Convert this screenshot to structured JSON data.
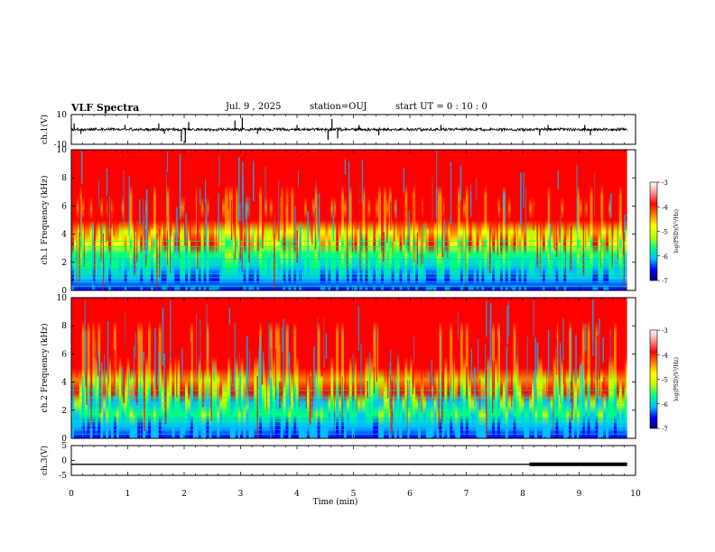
{
  "header": {
    "title": "VLF Spectra",
    "date": "Jul. 9 , 2025",
    "station": "station=OUJ",
    "start": "start UT = 0 : 10 : 0"
  },
  "chart_data": [
    {
      "type": "line",
      "name": "ch1-waveform",
      "ylabel": "ch.1(V)",
      "ylim": [
        -10,
        10
      ],
      "yticks": [
        "10",
        "-10"
      ],
      "xlim": [
        0,
        10
      ],
      "baseline": 0,
      "noise_amplitude": 1.2,
      "spikes": [
        {
          "t": 0.05,
          "v": 4
        },
        {
          "t": 0.17,
          "v": -3
        },
        {
          "t": 0.95,
          "v": 3
        },
        {
          "t": 1.55,
          "v": 4
        },
        {
          "t": 1.65,
          "v": -3
        },
        {
          "t": 1.95,
          "v": -8
        },
        {
          "t": 2.02,
          "v": -9
        },
        {
          "t": 2.08,
          "v": 5
        },
        {
          "t": 2.9,
          "v": 6
        },
        {
          "t": 3.03,
          "v": 8
        },
        {
          "t": 3.3,
          "v": -3
        },
        {
          "t": 4.0,
          "v": 3
        },
        {
          "t": 4.55,
          "v": -7
        },
        {
          "t": 4.62,
          "v": 7
        },
        {
          "t": 4.72,
          "v": -6
        },
        {
          "t": 5.1,
          "v": 3
        },
        {
          "t": 5.45,
          "v": -4
        },
        {
          "t": 6.55,
          "v": 3
        },
        {
          "t": 8.45,
          "v": 3
        },
        {
          "t": 8.3,
          "v": -4
        },
        {
          "t": 9.1,
          "v": 3
        },
        {
          "t": 9.2,
          "v": -4
        }
      ]
    },
    {
      "type": "heatmap",
      "name": "ch1-spectrogram",
      "ylabel": "ch.1 Frequency (kHz)",
      "ylim": [
        0,
        10
      ],
      "yticks": [
        0,
        2,
        4,
        6,
        8,
        10
      ],
      "xlim": [
        0,
        9.85
      ],
      "colorbar": {
        "label": "log(PSD)(V²/Hz)",
        "range": [
          -7,
          -3
        ],
        "ticks": [
          "-3",
          "-4",
          "-5",
          "-6",
          "-7"
        ],
        "colors": [
          "#000080",
          "#0000ff",
          "#00c0ff",
          "#00ff80",
          "#c0ff00",
          "#ffff00",
          "#ff8000",
          "#ff0000",
          "#ff9090",
          "#ffffff"
        ]
      },
      "bands_khz": [
        0.3,
        0.6,
        0.9,
        1.2,
        1.5,
        1.8,
        2.2,
        2.7,
        3.1,
        3.5
      ],
      "seed": 7
    },
    {
      "type": "heatmap",
      "name": "ch2-spectrogram",
      "ylabel": "ch.2 Frequency (kHz)",
      "ylim": [
        0,
        10
      ],
      "yticks": [
        0,
        2,
        4,
        6,
        8,
        10
      ],
      "xlim": [
        0,
        9.85
      ],
      "colorbar": {
        "label": "log(PSD)(V²/Hz)",
        "range": [
          -7,
          -3
        ],
        "ticks": [
          "-3",
          "-4",
          "-5",
          "-6",
          "-7"
        ],
        "colors": [
          "#000080",
          "#0000ff",
          "#00c0ff",
          "#00ff80",
          "#c0ff00",
          "#ffff00",
          "#ff8000",
          "#ff0000",
          "#ff9090",
          "#ffffff"
        ]
      },
      "bands_khz": [
        0.3,
        0.6,
        0.9,
        1.2,
        1.4,
        2.0,
        2.5,
        2.9,
        3.4
      ],
      "seed": 13
    },
    {
      "type": "line",
      "name": "ch3-waveform",
      "ylabel": "ch.3(V)",
      "ylim": [
        -5,
        5
      ],
      "yticks": [
        "5",
        "0",
        "-5"
      ],
      "xlim": [
        0,
        10
      ],
      "baseline": -1.3,
      "segments": [
        {
          "t0": 0,
          "t1": 9.85,
          "v": -1.3,
          "width": 1.4
        },
        {
          "t0": 8.12,
          "t1": 9.85,
          "v": -1.3,
          "width": 4
        }
      ]
    }
  ],
  "xaxis": {
    "label": "Time (min)",
    "range": [
      0,
      10
    ],
    "ticks": [
      "0",
      "1",
      "2",
      "3",
      "4",
      "5",
      "6",
      "7",
      "8",
      "9",
      "10"
    ]
  }
}
